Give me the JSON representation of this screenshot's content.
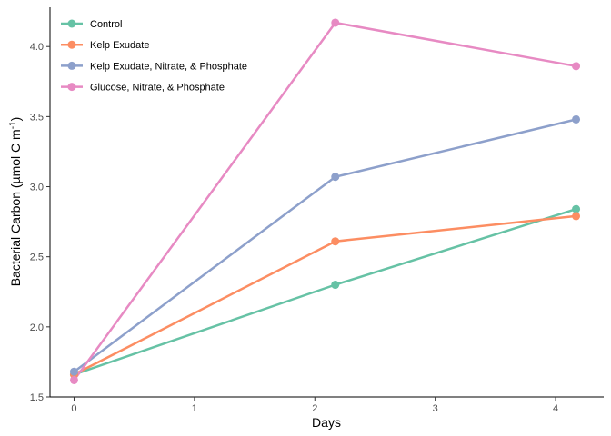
{
  "chart_data": {
    "type": "line",
    "title": "",
    "xlabel": "Days",
    "ylabel": "Bacterial Carbon (µmol C m",
    "ylabel_sup": "-1",
    "ylabel_close": ")",
    "xlim": [
      -0.2,
      4.4
    ],
    "ylim": [
      1.5,
      4.28
    ],
    "x_ticks": [
      0,
      1,
      2,
      3,
      4
    ],
    "x_tick_labels": [
      "0",
      "1",
      "2",
      "3",
      "4"
    ],
    "y_ticks": [
      1.5,
      2.0,
      2.5,
      3.0,
      3.5,
      4.0
    ],
    "y_tick_labels": [
      "1.5",
      "2.0",
      "2.5",
      "3.0",
      "3.5",
      "4.0"
    ],
    "grid": false,
    "legend_position": "top-left",
    "series": [
      {
        "name": "Control",
        "color": "#66c2a5",
        "x": [
          0,
          2.17,
          4.17
        ],
        "values": [
          1.66,
          2.3,
          2.84
        ]
      },
      {
        "name": "Kelp Exudate",
        "color": "#fc8d62",
        "x": [
          0,
          2.17,
          4.17
        ],
        "values": [
          1.66,
          2.61,
          2.79
        ]
      },
      {
        "name": "Kelp Exudate, Nitrate, & Phosphate",
        "color": "#8da0cb",
        "x": [
          0,
          2.17,
          4.17
        ],
        "values": [
          1.68,
          3.07,
          3.48
        ]
      },
      {
        "name": "Glucose, Nitrate, & Phosphate",
        "color": "#e78ac3",
        "x": [
          0,
          2.17,
          4.17
        ],
        "values": [
          1.62,
          4.17,
          3.86
        ]
      }
    ]
  }
}
